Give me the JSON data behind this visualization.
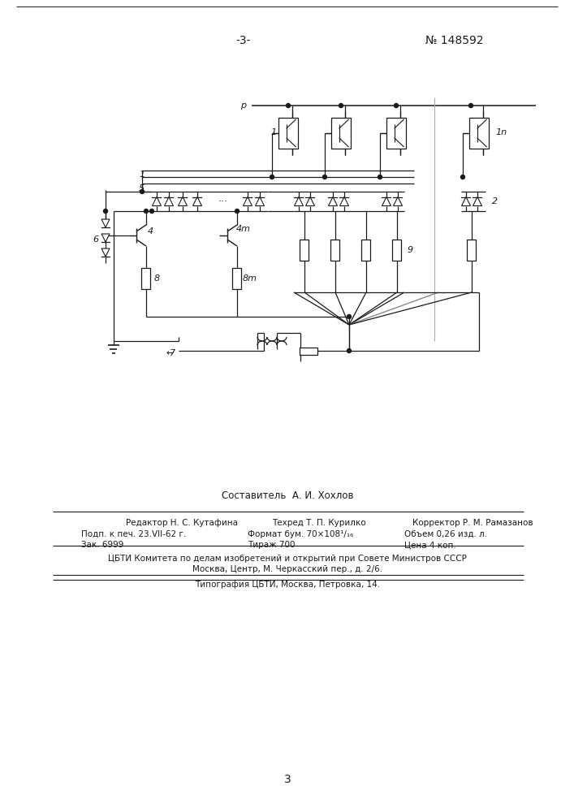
{
  "page_number": "-3-",
  "patent_number": "№ 148592",
  "bg_color": "#ffffff",
  "text_color": "#1a1a1a",
  "line_color": "#1a1a1a",
  "footer": {
    "compiler": "Составитель  А. И. Хохлов",
    "editor": "Редактор Н. С. Кутафина",
    "tech": "Техред Т. П. Курилко",
    "corrector": "Корректор Р. М. Рамазанов",
    "line1_left": "Подп. к печ. 23.VII-62 г.",
    "line1_mid": "Формат бум. 70×108¹/₁₆",
    "line1_right": "Объем 0,26 изд. л.",
    "line2_left": "Зак. 6999",
    "line2_mid": "Тираж 700",
    "line2_right": "Цена 4 коп.",
    "line3": "ЦБТИ Комитета по делам изобретений и открытий при Совете Министров СССР",
    "line4": "Москва, Центр, М. Черкасский пер., д. 2/6.",
    "line5": "Типография ЦБТИ, Москва, Петровка, 14.",
    "page_num": "3"
  }
}
